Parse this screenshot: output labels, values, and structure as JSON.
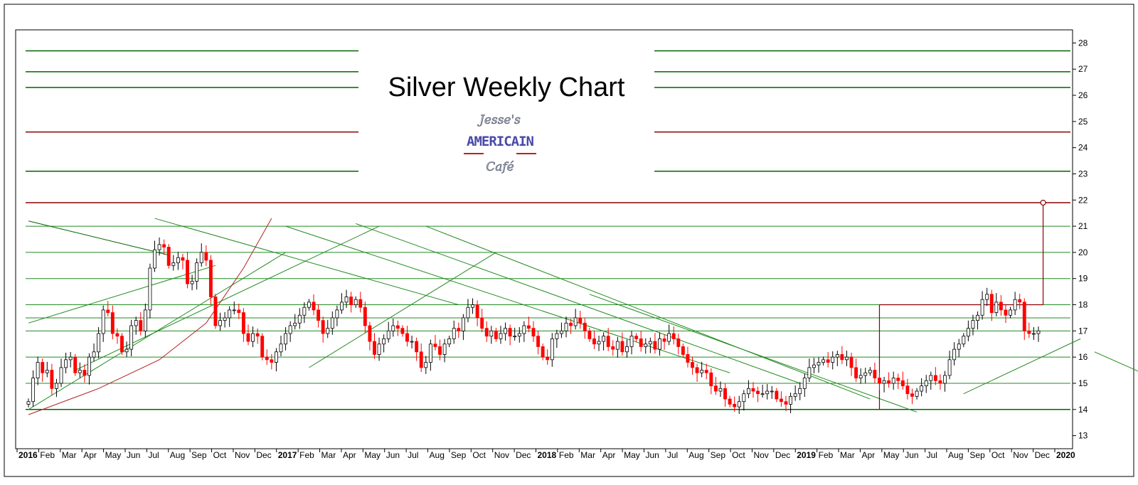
{
  "chart_data": {
    "type": "candlestick",
    "title": "Silver Weekly Chart",
    "logo_text": [
      "Jesse's",
      "AMERICAIN",
      "Café"
    ],
    "y_axis": {
      "position": "right",
      "range": [
        12.5,
        28.5
      ],
      "ticks": [
        "13",
        "14",
        "15",
        "16",
        "17",
        "18",
        "19",
        "20",
        "21",
        "22",
        "23",
        "24",
        "25",
        "26",
        "27",
        "28"
      ]
    },
    "x_axis": {
      "labels": [
        {
          "text": "2016",
          "bold": true
        },
        {
          "text": "Feb"
        },
        {
          "text": "Mar"
        },
        {
          "text": "Apr"
        },
        {
          "text": "May"
        },
        {
          "text": "Jun"
        },
        {
          "text": "Jul"
        },
        {
          "text": "Aug"
        },
        {
          "text": "Sep"
        },
        {
          "text": "Oct"
        },
        {
          "text": "Nov"
        },
        {
          "text": "Dec"
        },
        {
          "text": "2017",
          "bold": true
        },
        {
          "text": "Feb"
        },
        {
          "text": "Mar"
        },
        {
          "text": "Apr"
        },
        {
          "text": "May"
        },
        {
          "text": "Jun"
        },
        {
          "text": "Jul"
        },
        {
          "text": "Aug"
        },
        {
          "text": "Sep"
        },
        {
          "text": "Oct"
        },
        {
          "text": "Nov"
        },
        {
          "text": "Dec"
        },
        {
          "text": "2018",
          "bold": true
        },
        {
          "text": "Feb"
        },
        {
          "text": "Mar"
        },
        {
          "text": "Apr"
        },
        {
          "text": "May"
        },
        {
          "text": "Jun"
        },
        {
          "text": "Jul"
        },
        {
          "text": "Aug"
        },
        {
          "text": "Sep"
        },
        {
          "text": "Oct"
        },
        {
          "text": "Nov"
        },
        {
          "text": "Dec"
        },
        {
          "text": "2019",
          "bold": true
        },
        {
          "text": "Feb"
        },
        {
          "text": "Mar"
        },
        {
          "text": "Apr"
        },
        {
          "text": "May"
        },
        {
          "text": "Jun"
        },
        {
          "text": "Jul"
        },
        {
          "text": "Aug"
        },
        {
          "text": "Sep"
        },
        {
          "text": "Oct"
        },
        {
          "text": "Nov"
        },
        {
          "text": "Dec"
        },
        {
          "text": "2020",
          "bold": true
        }
      ]
    },
    "colors": {
      "up": "#ffffff",
      "down": "#ff0000",
      "outline": "#000000",
      "support": "#006400",
      "resistance": "#8b0000",
      "trend": "#228b22"
    },
    "horizontal_levels": [
      {
        "price": 27.7,
        "color": "#006400",
        "split": true
      },
      {
        "price": 26.9,
        "color": "#006400",
        "split": true
      },
      {
        "price": 26.3,
        "color": "#006400",
        "split": true
      },
      {
        "price": 24.6,
        "color": "#8b0000",
        "split": true
      },
      {
        "price": 23.1,
        "color": "#006400",
        "split": true
      },
      {
        "price": 21.9,
        "color": "#8b0000",
        "split": false
      },
      {
        "price": 21.0,
        "color": "#228b22",
        "split": false
      },
      {
        "price": 20.0,
        "color": "#228b22",
        "split": false
      },
      {
        "price": 19.0,
        "color": "#228b22",
        "split": false
      },
      {
        "price": 18.0,
        "color": "#228b22",
        "split": false
      },
      {
        "price": 17.5,
        "color": "#228b22",
        "split": false
      },
      {
        "price": 17.0,
        "color": "#228b22",
        "split": false
      },
      {
        "price": 16.0,
        "color": "#228b22",
        "split": false
      },
      {
        "price": 15.0,
        "color": "#228b22",
        "split": false
      },
      {
        "price": 14.0,
        "color": "#006400",
        "split": false
      }
    ],
    "diagonal_lines": [
      {
        "from": [
          0,
          21.2
        ],
        "to": [
          30,
          19.9
        ],
        "color": "#006400"
      },
      {
        "from": [
          27,
          21.3
        ],
        "to": [
          92,
          18.0
        ],
        "color": "#228b22"
      },
      {
        "from": [
          55,
          21.0
        ],
        "to": [
          150,
          15.4
        ],
        "color": "#228b22"
      },
      {
        "from": [
          70,
          21.1
        ],
        "to": [
          165,
          15.0
        ],
        "color": "#228b22"
      },
      {
        "from": [
          85,
          21.0
        ],
        "to": [
          180,
          14.4
        ],
        "color": "#228b22"
      },
      {
        "from": [
          120,
          18.4
        ],
        "to": [
          190,
          13.9
        ],
        "color": "#228b22"
      },
      {
        "from": [
          0,
          14.0
        ],
        "to": [
          55,
          20.0
        ],
        "color": "#228b22"
      },
      {
        "from": [
          10,
          15.5
        ],
        "to": [
          75,
          21.0
        ],
        "color": "#228b22"
      },
      {
        "from": [
          60,
          15.6
        ],
        "to": [
          100,
          20.0
        ],
        "color": "#228b22"
      },
      {
        "from": [
          0,
          17.3
        ],
        "to": [
          40,
          19.5
        ],
        "color": "#228b22"
      },
      {
        "from": [
          200,
          14.6
        ],
        "to": [
          225,
          16.7
        ],
        "color": "#228b22"
      },
      {
        "from": [
          228,
          16.2
        ],
        "to": [
          252,
          14.3
        ],
        "color": "#228b22"
      },
      {
        "from": [
          245,
          15.3
        ],
        "to": [
          260,
          17.2
        ],
        "color": "#228b22"
      },
      {
        "from": [
          262,
          18.8
        ],
        "to": [
          279,
          18.4
        ],
        "color": "#228b22"
      },
      {
        "from": [
          262,
          17.0
        ],
        "to": [
          279,
          16.5
        ],
        "color": "#228b22"
      }
    ],
    "red_curve": [
      [
        0,
        13.8
      ],
      [
        15,
        14.8
      ],
      [
        28,
        15.9
      ],
      [
        38,
        17.3
      ],
      [
        46,
        19.4
      ],
      [
        52,
        21.3
      ]
    ],
    "annotation": {
      "vertical_at": 182,
      "from_price": 14.0,
      "to_price": 18.0,
      "horizontal_to": 217,
      "stem_x": 217,
      "stem_top": 21.9,
      "color": "#8b0000"
    },
    "series": [
      {
        "name": "",
        "open": [
          14.2,
          14.3,
          15.2,
          15.8,
          15.4,
          15.5,
          14.8,
          15.0,
          15.6,
          15.9,
          16.0,
          15.4,
          15.5,
          15.3,
          16.0,
          16.2,
          16.9,
          17.8,
          17.7,
          16.9,
          16.8,
          16.2,
          16.3,
          17.2,
          17.4,
          17.0,
          17.8,
          19.4,
          20.1,
          20.3,
          20.2,
          19.5,
          19.6,
          19.8,
          19.7,
          18.8,
          18.9,
          19.6,
          20.0,
          19.7,
          18.3,
          17.2,
          17.4,
          17.5,
          17.8,
          17.8,
          17.7,
          16.9,
          16.6,
          16.9,
          16.8,
          16.0,
          15.9,
          15.8,
          16.2,
          16.5,
          16.9,
          17.2,
          17.3,
          17.6,
          17.9,
          18.1,
          17.8,
          17.4,
          16.9,
          17.1,
          17.5,
          17.8,
          18.1,
          18.3,
          18.0,
          18.2,
          17.9,
          17.2,
          16.6,
          16.1,
          16.5,
          16.7,
          17.0,
          17.2,
          17.1,
          16.9,
          16.6,
          16.6,
          16.2,
          15.6,
          15.8,
          16.5,
          16.4,
          16.1,
          16.5,
          16.7,
          17.1,
          17.0,
          17.5,
          17.9,
          18.0,
          17.5,
          17.1,
          16.8,
          17.0,
          16.7,
          16.9,
          17.1,
          16.8,
          16.8,
          16.9,
          17.2,
          17.1,
          16.8,
          16.4,
          16.0,
          15.9,
          16.7,
          16.9,
          17.0,
          17.3,
          17.2,
          17.5,
          17.3,
          17.0,
          16.7,
          16.5,
          16.6,
          16.8,
          16.4,
          16.3,
          16.6,
          16.2,
          16.4,
          16.8,
          16.7,
          16.4,
          16.5,
          16.6,
          16.3,
          16.7,
          16.6,
          16.9,
          16.7,
          16.4,
          16.1,
          15.8,
          15.6,
          15.4,
          15.5,
          15.4,
          14.9,
          14.7,
          14.8,
          14.4,
          14.2,
          14.1,
          14.3,
          14.6,
          14.8,
          14.7,
          14.6,
          14.6,
          14.7,
          14.7,
          14.4,
          14.3,
          14.2,
          14.5,
          14.6,
          14.8,
          15.2,
          15.6,
          15.7,
          15.8,
          15.9,
          15.8,
          16.0,
          16.1,
          15.9,
          16.0,
          15.6,
          15.2,
          15.3,
          15.4,
          15.5,
          15.2,
          15.0,
          15.1,
          15.0,
          15.2,
          15.1,
          14.9,
          14.6,
          14.5,
          14.7,
          14.9,
          15.1,
          15.3,
          15.1,
          15.0,
          15.3,
          15.9,
          16.3,
          16.5,
          16.8,
          17.1,
          17.4,
          17.6,
          18.2,
          18.4,
          17.7,
          18.1,
          17.8,
          17.6,
          17.8,
          18.2,
          18.1,
          17.0,
          16.9,
          16.9
        ]
      },
      {
        "name": "",
        "close": [
          14.3,
          15.2,
          15.8,
          15.4,
          15.5,
          14.8,
          15.0,
          15.6,
          15.9,
          16.0,
          15.4,
          15.5,
          15.3,
          16.0,
          16.2,
          16.9,
          17.8,
          17.7,
          16.9,
          16.8,
          16.2,
          16.3,
          17.2,
          17.4,
          17.0,
          17.8,
          19.4,
          20.1,
          20.3,
          20.2,
          19.5,
          19.6,
          19.8,
          19.7,
          18.8,
          18.9,
          19.6,
          20.0,
          19.7,
          18.3,
          17.2,
          17.4,
          17.5,
          17.8,
          17.8,
          17.7,
          16.9,
          16.6,
          16.9,
          16.8,
          16.0,
          15.9,
          15.8,
          16.2,
          16.5,
          16.9,
          17.2,
          17.3,
          17.6,
          17.9,
          18.1,
          17.8,
          17.4,
          16.9,
          17.1,
          17.5,
          17.8,
          18.1,
          18.3,
          18.0,
          18.2,
          17.9,
          17.2,
          16.6,
          16.1,
          16.5,
          16.7,
          17.0,
          17.2,
          17.1,
          16.9,
          16.6,
          16.6,
          16.2,
          15.6,
          15.8,
          16.5,
          16.4,
          16.1,
          16.5,
          16.7,
          17.1,
          17.0,
          17.5,
          17.9,
          18.0,
          17.5,
          17.1,
          16.8,
          17.0,
          16.7,
          16.9,
          17.1,
          16.8,
          16.8,
          16.9,
          17.2,
          17.1,
          16.8,
          16.4,
          16.0,
          15.9,
          16.7,
          16.9,
          17.0,
          17.3,
          17.2,
          17.5,
          17.3,
          17.0,
          16.7,
          16.5,
          16.6,
          16.8,
          16.4,
          16.3,
          16.6,
          16.2,
          16.4,
          16.8,
          16.7,
          16.4,
          16.5,
          16.6,
          16.3,
          16.7,
          16.6,
          16.9,
          16.7,
          16.4,
          16.1,
          15.8,
          15.6,
          15.4,
          15.5,
          15.4,
          14.9,
          14.7,
          14.8,
          14.4,
          14.2,
          14.1,
          14.3,
          14.6,
          14.8,
          14.7,
          14.6,
          14.6,
          14.7,
          14.7,
          14.4,
          14.3,
          14.2,
          14.5,
          14.6,
          14.8,
          15.2,
          15.6,
          15.7,
          15.8,
          15.9,
          15.8,
          16.0,
          16.1,
          15.9,
          16.0,
          15.6,
          15.2,
          15.3,
          15.4,
          15.5,
          15.2,
          15.0,
          15.1,
          15.0,
          15.2,
          15.1,
          14.9,
          14.6,
          14.5,
          14.7,
          14.9,
          15.1,
          15.3,
          15.1,
          15.0,
          15.3,
          15.9,
          16.3,
          16.5,
          16.8,
          17.1,
          17.4,
          17.6,
          18.2,
          18.4,
          17.7,
          18.1,
          17.8,
          17.6,
          17.8,
          18.2,
          18.1,
          17.0,
          16.9,
          16.9,
          17.0
        ]
      }
    ]
  }
}
